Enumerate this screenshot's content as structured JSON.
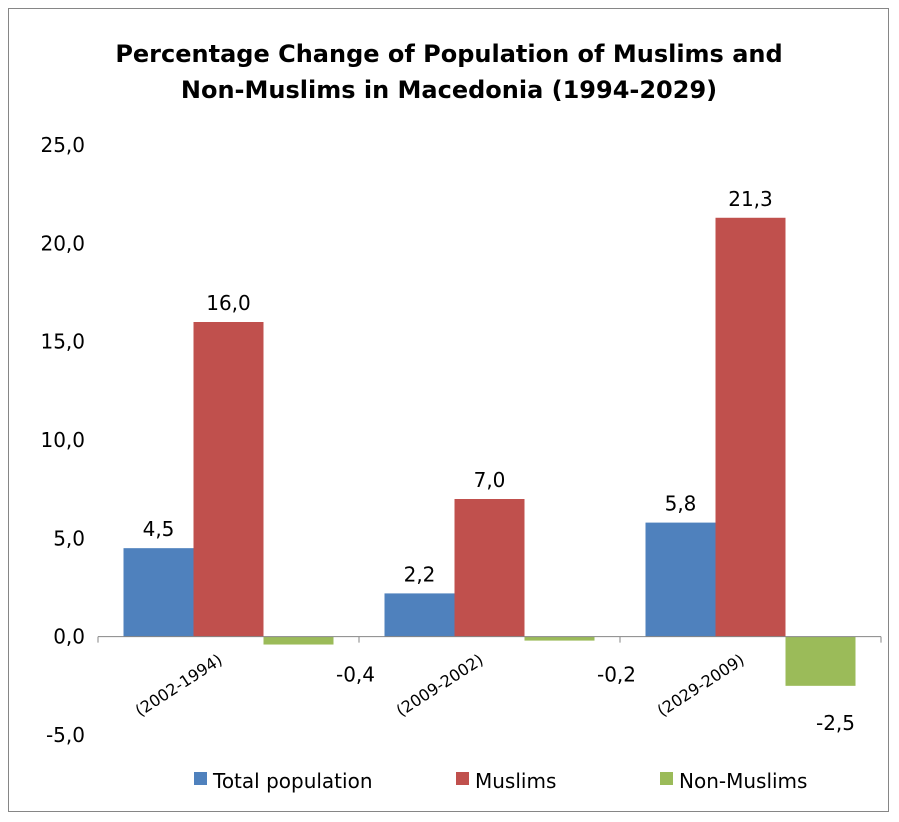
{
  "chart_data": {
    "type": "bar",
    "title": "Percentage Change of Population of Muslims and Non-Muslims in Macedonia (1994-2029)",
    "title_lines": [
      "Percentage Change of Population of Muslims and",
      "Non-Muslims in Macedonia (1994-2029)"
    ],
    "categories": [
      "(2002-1994)",
      "(2009-2002)",
      "(2029-2009)"
    ],
    "series": [
      {
        "name": "Total population",
        "color": "#4F81BD",
        "values": [
          4.5,
          2.2,
          5.8
        ],
        "labels": [
          "4,5",
          "2,2",
          "5,8"
        ]
      },
      {
        "name": "Muslims",
        "color": "#C0504D",
        "values": [
          16.0,
          7.0,
          21.3
        ],
        "labels": [
          "16,0",
          "7,0",
          "21,3"
        ]
      },
      {
        "name": "Non-Muslims",
        "color": "#9BBB59",
        "values": [
          -0.4,
          -0.2,
          -2.5
        ],
        "labels": [
          "-0,4",
          "-0,2",
          "-2,5"
        ]
      }
    ],
    "ylim": [
      -5,
      25
    ],
    "yticks": [
      -5,
      0,
      5,
      10,
      15,
      20,
      25
    ],
    "ytick_labels": [
      "-5,0",
      "0,0",
      "5,0",
      "10,0",
      "15,0",
      "20,0",
      "25,0"
    ],
    "xlabel": "",
    "ylabel": "",
    "grid": false,
    "legend_position": "bottom"
  }
}
